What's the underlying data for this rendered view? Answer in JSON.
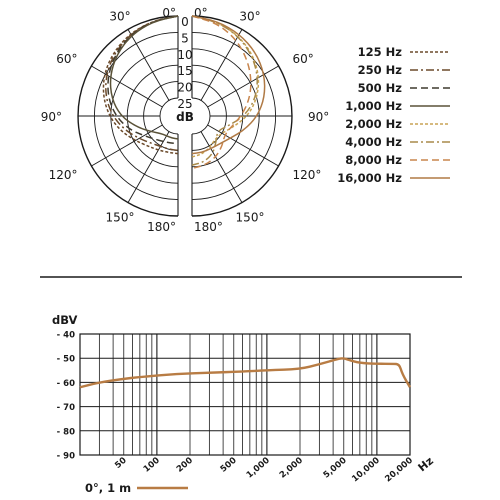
{
  "chart_data": [
    {
      "type": "polar",
      "angle_labels_left": [
        "0°",
        "30°",
        "60°",
        "90°",
        "120°",
        "150°",
        "180°"
      ],
      "angle_labels_right": [
        "0°",
        "30°",
        "60°",
        "90°",
        "120°",
        "150°",
        "180°"
      ],
      "radial_tick_labels": [
        "0",
        "5",
        "10",
        "15",
        "20",
        "25"
      ],
      "radial_unit": "dB",
      "rlim": [
        -25,
        0
      ],
      "angles_deg": [
        0,
        15,
        30,
        45,
        60,
        75,
        90,
        105,
        120,
        135,
        150,
        165,
        180
      ],
      "legend_position": "right",
      "series": [
        {
          "name": "125 Hz",
          "side": "left",
          "color": "#6b4a2b",
          "dash": "3,2",
          "values_db": [
            0,
            -0.5,
            -1.4,
            -2.8,
            -4.5,
            -6.8,
            -9.5,
            -12.5,
            -15.5,
            -17.5,
            -18.5,
            -19,
            -19
          ]
        },
        {
          "name": "250 Hz",
          "side": "left",
          "color": "#6b4a2b",
          "dash": "8,3,2,3",
          "values_db": [
            0,
            -0.5,
            -1.6,
            -3.2,
            -5.2,
            -7.6,
            -10.5,
            -13.8,
            -16.8,
            -18.8,
            -19.8,
            -20,
            -20
          ]
        },
        {
          "name": "500 Hz",
          "side": "left",
          "color": "#3f3a2e",
          "dash": "7,4",
          "values_db": [
            0,
            -0.6,
            -1.8,
            -3.6,
            -5.8,
            -8.4,
            -11.5,
            -15,
            -18.5,
            -20.5,
            -21.5,
            -22,
            -22
          ]
        },
        {
          "name": "1,000 Hz",
          "side": "left",
          "color": "#5a5238",
          "dash": "",
          "values_db": [
            0,
            -0.7,
            -2.0,
            -4.0,
            -6.5,
            -9.5,
            -13,
            -17.5,
            -21,
            -23,
            -23.5,
            -23.5,
            -23.5
          ]
        },
        {
          "name": "2,000 Hz",
          "side": "right",
          "color": "#c9a455",
          "dash": "3,2",
          "values_db": [
            0,
            -0.8,
            -2.2,
            -4.2,
            -6.8,
            -10,
            -13.5,
            -17.5,
            -20,
            -20.5,
            -19.5,
            -18.5,
            -18
          ]
        },
        {
          "name": "4,000 Hz",
          "side": "right",
          "color": "#a88a4a",
          "dash": "8,3,2,3",
          "values_db": [
            0,
            -0.8,
            -2.3,
            -4.5,
            -7.2,
            -10.5,
            -14.5,
            -19,
            -21.5,
            -20,
            -17.5,
            -16,
            -15.5
          ]
        },
        {
          "name": "8,000 Hz",
          "side": "right",
          "color": "#c8854d",
          "dash": "7,4",
          "values_db": [
            0,
            -1.2,
            -3.5,
            -6.5,
            -9.5,
            -12.5,
            -15.5,
            -18,
            -19,
            -17.5,
            -16,
            -15,
            -14.5
          ]
        },
        {
          "name": "16,000 Hz",
          "side": "right",
          "color": "#b07a45",
          "dash": "",
          "values_db": [
            0,
            -0.6,
            -1.6,
            -3.0,
            -5.0,
            -7.5,
            -10.5,
            -14,
            -17,
            -18.5,
            -19,
            -19,
            -19
          ]
        }
      ]
    },
    {
      "type": "line",
      "ylabel": "dBV",
      "xlabel": "Hz",
      "xscale": "log",
      "xlim": [
        20,
        20000
      ],
      "ylim": [
        -90,
        -40
      ],
      "y_ticks": [
        -40,
        -50,
        -60,
        -70,
        -80,
        -90
      ],
      "y_tick_labels": [
        "- 40",
        "- 50",
        "- 60",
        "- 70",
        "- 80",
        "- 90"
      ],
      "x_ticks": [
        50,
        100,
        200,
        500,
        1000,
        2000,
        5000,
        10000,
        20000
      ],
      "x_tick_labels": [
        "50",
        "100",
        "200",
        "500",
        "1,000",
        "2,000",
        "5,000",
        "10,000",
        "20,000"
      ],
      "grid": true,
      "legend_position": "bottom-left",
      "series": [
        {
          "name": "0°, 1 m",
          "color": "#b87c44",
          "x": [
            20,
            30,
            50,
            80,
            150,
            300,
            600,
            1000,
            2000,
            3000,
            4500,
            5000,
            5500,
            7000,
            10000,
            14000,
            16000,
            17000,
            20000
          ],
          "y": [
            -62,
            -60,
            -58.5,
            -57.5,
            -56.5,
            -56,
            -55.5,
            -55,
            -54.5,
            -52.5,
            -50.2,
            -50,
            -50.7,
            -52,
            -52.3,
            -52.3,
            -52.5,
            -56.5,
            -62
          ]
        }
      ]
    }
  ]
}
